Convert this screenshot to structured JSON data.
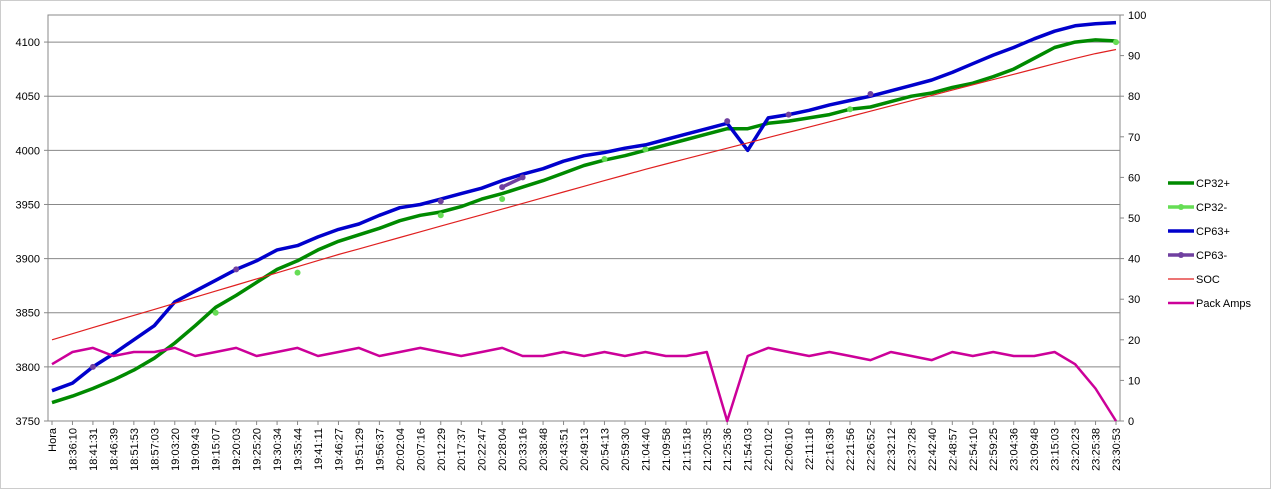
{
  "chart_data": {
    "type": "line",
    "categories": [
      "Hora",
      "18:36:10",
      "18:41:31",
      "18:46:39",
      "18:51:53",
      "18:57:03",
      "19:03:20",
      "19:09:43",
      "19:15:07",
      "19:20:03",
      "19:25:20",
      "19:30:34",
      "19:35:44",
      "19:41:11",
      "19:46:27",
      "19:51:29",
      "19:56:37",
      "20:02:04",
      "20:07:16",
      "20:12:29",
      "20:17:37",
      "20:22:47",
      "20:28:04",
      "20:33:16",
      "20:38:48",
      "20:43:51",
      "20:49:13",
      "20:54:13",
      "20:59:30",
      "21:04:40",
      "21:09:58",
      "21:15:18",
      "21:20:35",
      "21:25:36",
      "21:54:03",
      "22:01:02",
      "22:06:10",
      "22:11:18",
      "22:16:39",
      "22:21:56",
      "22:26:52",
      "22:32:12",
      "22:37:28",
      "22:42:40",
      "22:48:57",
      "22:54:10",
      "22:59:25",
      "23:04:36",
      "23:09:48",
      "23:15:03",
      "23:20:23",
      "23:25:38",
      "23:30:53"
    ],
    "ylim": [
      3750,
      4125
    ],
    "yticks": [
      3750,
      3800,
      3850,
      3900,
      3950,
      4000,
      4050,
      4100
    ],
    "y2lim": [
      0,
      100
    ],
    "y2ticks": [
      0,
      10,
      20,
      30,
      40,
      50,
      60,
      70,
      80,
      90,
      100
    ],
    "grid": true,
    "legend": "right",
    "series": [
      {
        "name": "CP32+",
        "color": "#008a00",
        "width": 3.5,
        "marker": false,
        "values": [
          3767,
          3773,
          3780,
          3788,
          3797,
          3808,
          3822,
          3838,
          3855,
          3866,
          3878,
          3890,
          3898,
          3908,
          3916,
          3922,
          3928,
          3935,
          3940,
          3943,
          3948,
          3955,
          3960,
          3966,
          3972,
          3979,
          3986,
          3991,
          3995,
          4000,
          4005,
          4010,
          4015,
          4020,
          4020,
          4025,
          4027,
          4030,
          4033,
          4038,
          4040,
          4045,
          4050,
          4053,
          4058,
          4062,
          4068,
          4075,
          4085,
          4095,
          4100,
          4102,
          4101
        ]
      },
      {
        "name": "CP32-",
        "color": "#66dd55",
        "width": 3.5,
        "marker": true,
        "values": [
          null,
          null,
          null,
          null,
          null,
          null,
          null,
          null,
          3850,
          null,
          null,
          null,
          3887,
          null,
          null,
          null,
          null,
          null,
          null,
          3940,
          null,
          null,
          3955,
          null,
          null,
          null,
          null,
          3992,
          null,
          4001,
          null,
          null,
          null,
          null,
          null,
          null,
          null,
          null,
          null,
          4038,
          null,
          null,
          null,
          null,
          null,
          null,
          null,
          null,
          null,
          null,
          null,
          null,
          4100
        ]
      },
      {
        "name": "CP63+",
        "color": "#0000cc",
        "width": 3.5,
        "marker": false,
        "values": [
          3778,
          3785,
          3800,
          3812,
          3825,
          3838,
          3860,
          3870,
          3880,
          3890,
          3898,
          3908,
          3912,
          3920,
          3927,
          3932,
          3940,
          3947,
          3950,
          3955,
          3960,
          3965,
          3972,
          3978,
          3983,
          3990,
          3995,
          3998,
          4002,
          4005,
          4010,
          4015,
          4020,
          4025,
          4000,
          4030,
          4033,
          4037,
          4042,
          4046,
          4050,
          4055,
          4060,
          4065,
          4072,
          4080,
          4088,
          4095,
          4103,
          4110,
          4115,
          4117,
          4118
        ]
      },
      {
        "name": "CP63-",
        "color": "#7040a0",
        "width": 3.5,
        "marker": true,
        "values": [
          null,
          null,
          3800,
          null,
          null,
          null,
          null,
          null,
          null,
          3890,
          null,
          null,
          null,
          null,
          null,
          null,
          null,
          null,
          null,
          3953,
          null,
          null,
          3966,
          3975,
          null,
          null,
          null,
          null,
          null,
          null,
          null,
          null,
          null,
          4027,
          null,
          null,
          4033,
          null,
          null,
          null,
          4052,
          null,
          null,
          null,
          null,
          null,
          null,
          null,
          null,
          null,
          null,
          null,
          null
        ]
      },
      {
        "name": "SOC",
        "color": "#e02020",
        "width": 1.2,
        "marker": false,
        "axis": "y2",
        "values": [
          20,
          21.5,
          23,
          24.5,
          26,
          27.5,
          29,
          30.5,
          32,
          33.5,
          35,
          36.5,
          38,
          39.5,
          41,
          42.4,
          43.8,
          45.2,
          46.6,
          48,
          49.4,
          50.8,
          52.2,
          53.6,
          55,
          56.4,
          57.8,
          59.2,
          60.6,
          62,
          63.3,
          64.6,
          65.9,
          67.2,
          68.5,
          69.8,
          71.1,
          72.4,
          73.7,
          75,
          76.3,
          77.6,
          78.9,
          80.2,
          81.5,
          82.8,
          84.1,
          85.4,
          86.7,
          88,
          89.3,
          90.5,
          91.5
        ]
      },
      {
        "name": "Pack Amps",
        "color": "#cc0099",
        "width": 2.5,
        "marker": false,
        "axis": "y2",
        "values": [
          14,
          17,
          18,
          16,
          17,
          17,
          18,
          16,
          17,
          18,
          16,
          17,
          18,
          16,
          17,
          18,
          16,
          17,
          18,
          17,
          16,
          17,
          18,
          16,
          16,
          17,
          16,
          17,
          16,
          17,
          16,
          16,
          17,
          0,
          16,
          18,
          17,
          16,
          17,
          16,
          15,
          17,
          16,
          15,
          17,
          16,
          17,
          16,
          16,
          17,
          14,
          8,
          0
        ]
      }
    ]
  }
}
